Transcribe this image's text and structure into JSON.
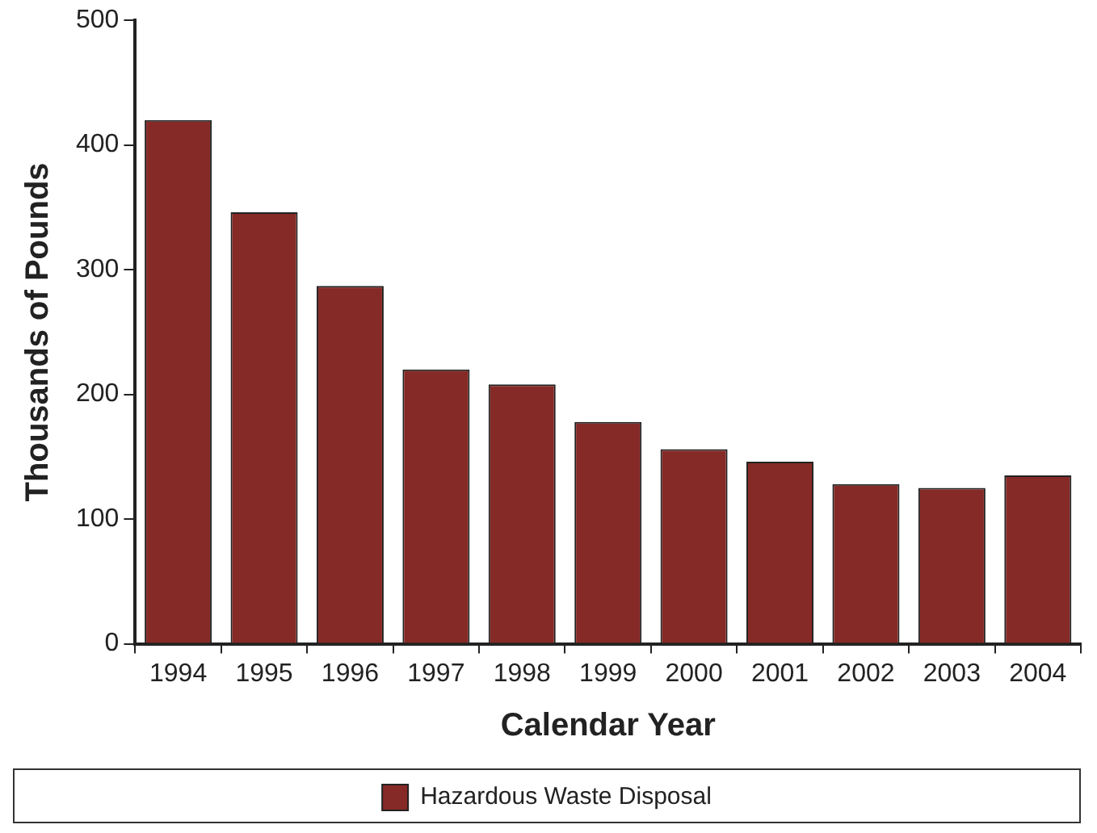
{
  "chart_data": {
    "type": "bar",
    "xlabel": "Calendar Year",
    "ylabel": "Thousands of Pounds",
    "categories": [
      "1994",
      "1995",
      "1996",
      "1997",
      "1998",
      "1999",
      "2000",
      "2001",
      "2002",
      "2003",
      "2004"
    ],
    "series": [
      {
        "name": "Hazardous Waste Disposal",
        "color": "#862a27",
        "values": [
          420,
          346,
          287,
          220,
          208,
          178,
          156,
          146,
          128,
          125,
          135
        ]
      }
    ],
    "ylim": [
      0,
      500
    ],
    "yticks": [
      0,
      100,
      200,
      300,
      400,
      500
    ],
    "grid": false,
    "legend": "bottom"
  }
}
